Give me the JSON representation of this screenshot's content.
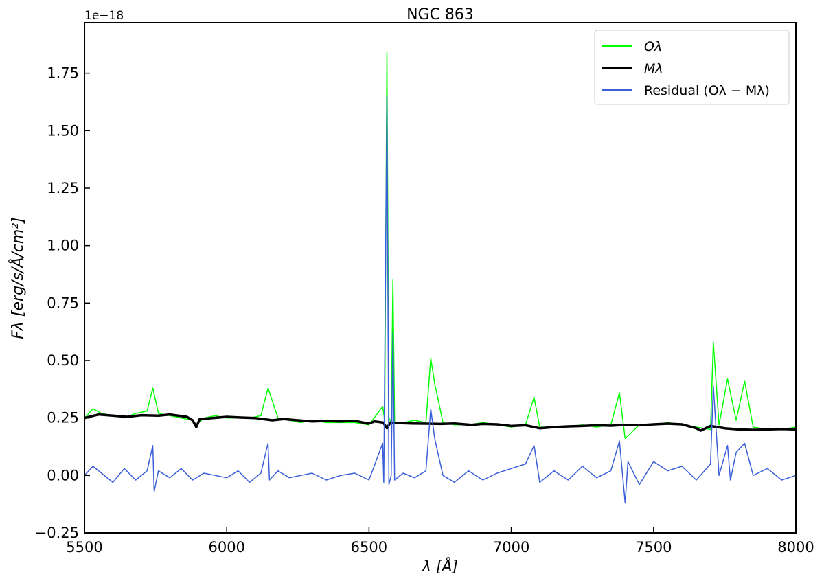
{
  "chart_data": {
    "type": "line",
    "title": "NGC 863",
    "xlabel": "λ [Å]",
    "ylabel": "Fλ [erg/s/Å/cm²]",
    "offset_text": "1e−18",
    "xlim": [
      5500,
      8000
    ],
    "ylim": [
      -0.25,
      1.97
    ],
    "x_ticks": [
      5500,
      6000,
      6500,
      7000,
      7500,
      8000
    ],
    "x_tick_labels": [
      "5500",
      "6000",
      "6500",
      "7000",
      "7500",
      "8000"
    ],
    "y_ticks": [
      -0.25,
      0.0,
      0.25,
      0.5,
      0.75,
      1.0,
      1.25,
      1.5,
      1.75
    ],
    "y_tick_labels": [
      "−0.25",
      "0.00",
      "0.25",
      "0.50",
      "0.75",
      "1.00",
      "1.25",
      "1.50",
      "1.75"
    ],
    "legend_position": "top-right",
    "grid": false,
    "series": [
      {
        "name": "Oλ",
        "color": "#00ff00",
        "x": [
          5500,
          5530,
          5560,
          5600,
          5640,
          5680,
          5720,
          5740,
          5760,
          5800,
          5840,
          5880,
          5893,
          5920,
          5960,
          6000,
          6040,
          6080,
          6120,
          6145,
          6180,
          6220,
          6260,
          6300,
          6350,
          6400,
          6450,
          6500,
          6548,
          6555,
          6563,
          6570,
          6578,
          6584,
          6590,
          6620,
          6660,
          6700,
          6717,
          6731,
          6760,
          6800,
          6850,
          6900,
          6950,
          7000,
          7050,
          7080,
          7100,
          7150,
          7200,
          7250,
          7300,
          7350,
          7380,
          7400,
          7450,
          7500,
          7550,
          7600,
          7650,
          7700,
          7710,
          7730,
          7760,
          7790,
          7820,
          7850,
          7900,
          7950,
          8000
        ],
        "values": [
          0.25,
          0.29,
          0.27,
          0.26,
          0.25,
          0.27,
          0.28,
          0.38,
          0.27,
          0.26,
          0.25,
          0.24,
          0.22,
          0.25,
          0.26,
          0.25,
          0.25,
          0.25,
          0.26,
          0.38,
          0.25,
          0.24,
          0.23,
          0.24,
          0.23,
          0.23,
          0.23,
          0.22,
          0.3,
          0.24,
          1.84,
          0.25,
          0.23,
          0.85,
          0.23,
          0.23,
          0.24,
          0.23,
          0.51,
          0.4,
          0.23,
          0.22,
          0.22,
          0.23,
          0.22,
          0.21,
          0.22,
          0.34,
          0.21,
          0.21,
          0.21,
          0.22,
          0.21,
          0.22,
          0.36,
          0.16,
          0.22,
          0.22,
          0.23,
          0.22,
          0.21,
          0.2,
          0.58,
          0.22,
          0.42,
          0.24,
          0.41,
          0.21,
          0.2,
          0.2,
          0.21
        ]
      },
      {
        "name": "Mλ",
        "color": "#000000",
        "x": [
          5500,
          5550,
          5600,
          5650,
          5700,
          5760,
          5800,
          5860,
          5880,
          5893,
          5905,
          5950,
          6000,
          6050,
          6100,
          6160,
          6200,
          6250,
          6300,
          6350,
          6400,
          6450,
          6497,
          6520,
          6550,
          6563,
          6575,
          6600,
          6650,
          6700,
          6750,
          6800,
          6860,
          6900,
          6950,
          7000,
          7050,
          7100,
          7150,
          7200,
          7250,
          7300,
          7350,
          7400,
          7450,
          7500,
          7550,
          7600,
          7650,
          7665,
          7700,
          7750,
          7800,
          7850,
          7900,
          7950,
          8000
        ],
        "values": [
          0.25,
          0.265,
          0.26,
          0.255,
          0.262,
          0.26,
          0.265,
          0.255,
          0.24,
          0.21,
          0.245,
          0.25,
          0.255,
          0.252,
          0.25,
          0.24,
          0.245,
          0.24,
          0.235,
          0.237,
          0.235,
          0.238,
          0.225,
          0.235,
          0.23,
          0.205,
          0.23,
          0.228,
          0.226,
          0.225,
          0.224,
          0.226,
          0.22,
          0.224,
          0.222,
          0.215,
          0.218,
          0.205,
          0.21,
          0.213,
          0.215,
          0.218,
          0.216,
          0.22,
          0.218,
          0.222,
          0.225,
          0.222,
          0.205,
          0.195,
          0.215,
          0.205,
          0.2,
          0.198,
          0.2,
          0.202,
          0.2
        ]
      },
      {
        "name": "Residual (Oλ − Mλ)",
        "color": "#3a5fd9",
        "x": [
          5500,
          5530,
          5560,
          5600,
          5640,
          5680,
          5720,
          5740,
          5745,
          5760,
          5800,
          5840,
          5880,
          5920,
          5960,
          6000,
          6040,
          6080,
          6120,
          6145,
          6150,
          6180,
          6220,
          6260,
          6300,
          6350,
          6400,
          6450,
          6500,
          6548,
          6552,
          6563,
          6570,
          6578,
          6584,
          6590,
          6620,
          6660,
          6700,
          6717,
          6731,
          6760,
          6800,
          6850,
          6900,
          6950,
          7000,
          7050,
          7080,
          7100,
          7150,
          7200,
          7250,
          7300,
          7350,
          7380,
          7400,
          7410,
          7450,
          7500,
          7550,
          7600,
          7650,
          7700,
          7710,
          7730,
          7760,
          7770,
          7790,
          7820,
          7850,
          7900,
          7950,
          8000
        ],
        "values": [
          0.0,
          0.04,
          0.01,
          -0.03,
          0.03,
          -0.02,
          0.02,
          0.13,
          -0.07,
          0.02,
          -0.01,
          0.03,
          -0.02,
          0.01,
          0.0,
          -0.01,
          0.02,
          -0.03,
          0.01,
          0.14,
          -0.02,
          0.02,
          -0.01,
          0.0,
          0.01,
          -0.02,
          0.0,
          0.01,
          -0.02,
          0.14,
          -0.03,
          1.65,
          -0.04,
          0.0,
          0.62,
          -0.02,
          0.01,
          -0.01,
          0.02,
          0.29,
          0.16,
          0.0,
          -0.03,
          0.02,
          -0.02,
          0.01,
          0.03,
          0.05,
          0.13,
          -0.03,
          0.02,
          -0.02,
          0.04,
          -0.01,
          0.02,
          0.15,
          -0.12,
          0.06,
          -0.04,
          0.06,
          0.02,
          0.04,
          -0.02,
          0.05,
          0.39,
          0.0,
          0.13,
          -0.02,
          0.1,
          0.14,
          0.0,
          0.03,
          -0.02,
          0.0
        ]
      }
    ]
  }
}
